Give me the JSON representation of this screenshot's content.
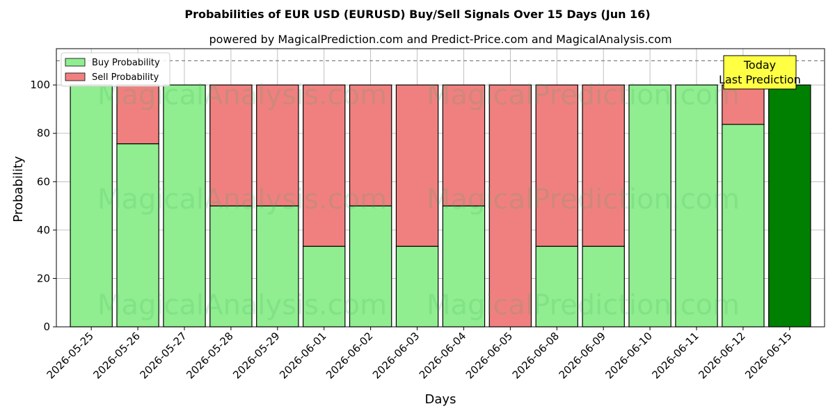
{
  "chart_data": {
    "type": "bar",
    "stacked": true,
    "title": "Probabilities of EUR USD (EURUSD) Buy/Sell Signals Over 15 Days (Jun 16)",
    "subtitle": "powered by MagicalPrediction.com and Predict-Price.com and MagicalAnalysis.com",
    "xlabel": "Days",
    "ylabel": "Probability",
    "ylim": [
      0,
      115
    ],
    "yticks": [
      0,
      20,
      40,
      60,
      80,
      100
    ],
    "grid": true,
    "reference_line": 110,
    "legend_placement": "top-left",
    "categories": [
      "2026-05-25",
      "2026-05-26",
      "2026-05-27",
      "2026-05-28",
      "2026-05-29",
      "2026-06-01",
      "2026-06-02",
      "2026-06-03",
      "2026-06-04",
      "2026-06-05",
      "2026-06-08",
      "2026-06-09",
      "2026-06-10",
      "2026-06-11",
      "2026-06-12",
      "2026-06-15"
    ],
    "series": [
      {
        "name": "Buy Probability",
        "color": "#90EE90",
        "values": [
          100,
          75.7,
          100,
          50,
          50,
          33.3,
          50,
          33.3,
          50,
          0,
          33.3,
          33.3,
          100,
          100,
          83.7,
          100
        ]
      },
      {
        "name": "Sell Probability",
        "color": "#F08080",
        "values": [
          0,
          24.3,
          0,
          50,
          50,
          66.7,
          50,
          66.7,
          50,
          100,
          66.7,
          66.7,
          0,
          0,
          16.3,
          0
        ]
      }
    ],
    "highlight": {
      "category": "2026-06-15",
      "color": "#008000"
    },
    "annotation": {
      "lines": [
        "Today",
        "Last Prediction"
      ],
      "background": "#FFFF44",
      "placement": "top-right"
    },
    "watermarks": [
      "MagicalAnalysis.com",
      "MagicalPrediction.com"
    ]
  }
}
